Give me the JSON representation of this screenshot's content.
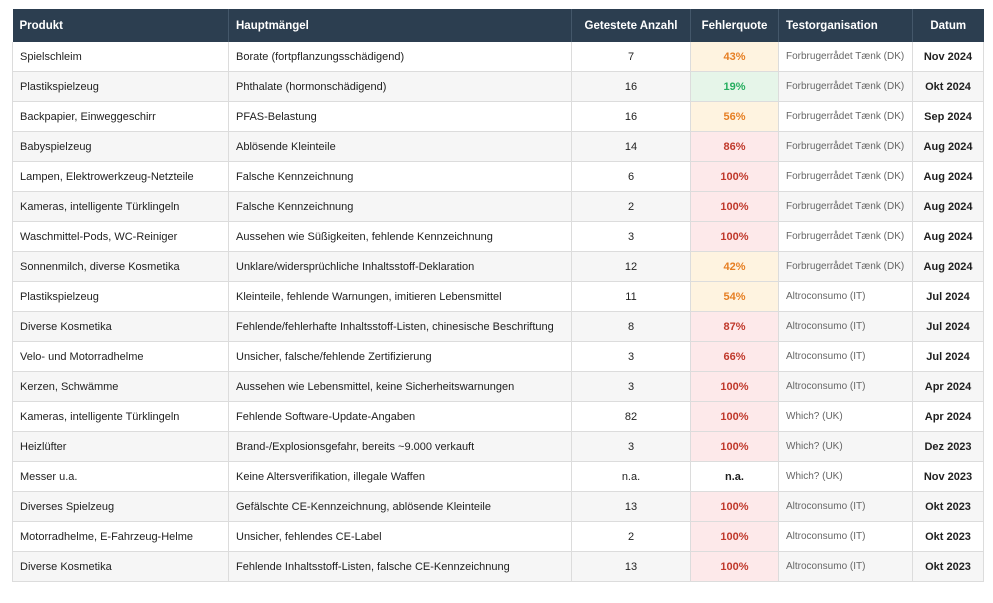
{
  "headers": {
    "produkt": "Produkt",
    "maengel": "Hauptmängel",
    "anzahl": "Getestete Anzahl",
    "quote": "Fehlerquote",
    "org": "Testorganisation",
    "datum": "Datum"
  },
  "colors": {
    "header_bg": "#2c3e50",
    "red": "#c0392b",
    "orange": "#e67e22",
    "green": "#27ae60"
  },
  "rows": [
    {
      "produkt": "Spielschleim",
      "maengel": "Borate (fortpflanzungsschädigend)",
      "anzahl": "7",
      "quote": "43%",
      "level": "orange",
      "org": "Forbrugerrådet Tænk (DK)",
      "datum": "Nov 2024"
    },
    {
      "produkt": "Plastikspielzeug",
      "maengel": "Phthalate (hormonschädigend)",
      "anzahl": "16",
      "quote": "19%",
      "level": "green",
      "org": "Forbrugerrådet Tænk (DK)",
      "datum": "Okt 2024"
    },
    {
      "produkt": "Backpapier, Einweggeschirr",
      "maengel": "PFAS-Belastung",
      "anzahl": "16",
      "quote": "56%",
      "level": "orange",
      "org": "Forbrugerrådet Tænk (DK)",
      "datum": "Sep 2024"
    },
    {
      "produkt": "Babyspielzeug",
      "maengel": "Ablösende Kleinteile",
      "anzahl": "14",
      "quote": "86%",
      "level": "red",
      "org": "Forbrugerrådet Tænk (DK)",
      "datum": "Aug 2024"
    },
    {
      "produkt": "Lampen, Elektrowerkzeug-Netzteile",
      "maengel": "Falsche Kennzeichnung",
      "anzahl": "6",
      "quote": "100%",
      "level": "red",
      "org": "Forbrugerrådet Tænk (DK)",
      "datum": "Aug 2024"
    },
    {
      "produkt": "Kameras, intelligente Türklingeln",
      "maengel": "Falsche Kennzeichnung",
      "anzahl": "2",
      "quote": "100%",
      "level": "red",
      "org": "Forbrugerrådet Tænk (DK)",
      "datum": "Aug 2024"
    },
    {
      "produkt": "Waschmittel-Pods, WC-Reiniger",
      "maengel": "Aussehen wie Süßigkeiten, fehlende Kennzeichnung",
      "anzahl": "3",
      "quote": "100%",
      "level": "red",
      "org": "Forbrugerrådet Tænk (DK)",
      "datum": "Aug 2024"
    },
    {
      "produkt": "Sonnenmilch, diverse Kosmetika",
      "maengel": "Unklare/widersprüchliche Inhaltsstoff-Deklaration",
      "anzahl": "12",
      "quote": "42%",
      "level": "orange",
      "org": "Forbrugerrådet Tænk (DK)",
      "datum": "Aug 2024"
    },
    {
      "produkt": "Plastikspielzeug",
      "maengel": "Kleinteile, fehlende Warnungen, imitieren Lebensmittel",
      "anzahl": "11",
      "quote": "54%",
      "level": "orange",
      "org": "Altroconsumo (IT)",
      "datum": "Jul 2024"
    },
    {
      "produkt": "Diverse Kosmetika",
      "maengel": "Fehlende/fehlerhafte Inhaltsstoff-Listen, chinesische Beschriftung",
      "anzahl": "8",
      "quote": "87%",
      "level": "red",
      "org": "Altroconsumo (IT)",
      "datum": "Jul 2024"
    },
    {
      "produkt": "Velo- und Motorradhelme",
      "maengel": "Unsicher, falsche/fehlende Zertifizierung",
      "anzahl": "3",
      "quote": "66%",
      "level": "red",
      "org": "Altroconsumo (IT)",
      "datum": "Jul 2024"
    },
    {
      "produkt": "Kerzen, Schwämme",
      "maengel": "Aussehen wie Lebensmittel, keine Sicherheitswarnungen",
      "anzahl": "3",
      "quote": "100%",
      "level": "red",
      "org": "Altroconsumo (IT)",
      "datum": "Apr 2024"
    },
    {
      "produkt": "Kameras, intelligente Türklingeln",
      "maengel": "Fehlende Software-Update-Angaben",
      "anzahl": "82",
      "quote": "100%",
      "level": "red",
      "org": "Which? (UK)",
      "datum": "Apr 2024"
    },
    {
      "produkt": "Heizlüfter",
      "maengel": "Brand-/Explosionsgefahr, bereits ~9.000 verkauft",
      "anzahl": "3",
      "quote": "100%",
      "level": "red",
      "org": "Which? (UK)",
      "datum": "Dez 2023"
    },
    {
      "produkt": "Messer u.a.",
      "maengel": "Keine Altersverifikation, illegale Waffen",
      "anzahl": "n.a.",
      "quote": "n.a.",
      "level": "neutral",
      "org": "Which? (UK)",
      "datum": "Nov 2023"
    },
    {
      "produkt": "Diverses Spielzeug",
      "maengel": "Gefälschte CE-Kennzeichnung, ablösende Kleinteile",
      "anzahl": "13",
      "quote": "100%",
      "level": "red",
      "org": "Altroconsumo (IT)",
      "datum": "Okt 2023"
    },
    {
      "produkt": "Motorradhelme, E-Fahrzeug-Helme",
      "maengel": "Unsicher, fehlendes CE-Label",
      "anzahl": "2",
      "quote": "100%",
      "level": "red",
      "org": "Altroconsumo (IT)",
      "datum": "Okt 2023"
    },
    {
      "produkt": "Diverse Kosmetika",
      "maengel": "Fehlende Inhaltsstoff-Listen, falsche CE-Kennzeichnung",
      "anzahl": "13",
      "quote": "100%",
      "level": "red",
      "org": "Altroconsumo (IT)",
      "datum": "Okt 2023"
    }
  ]
}
